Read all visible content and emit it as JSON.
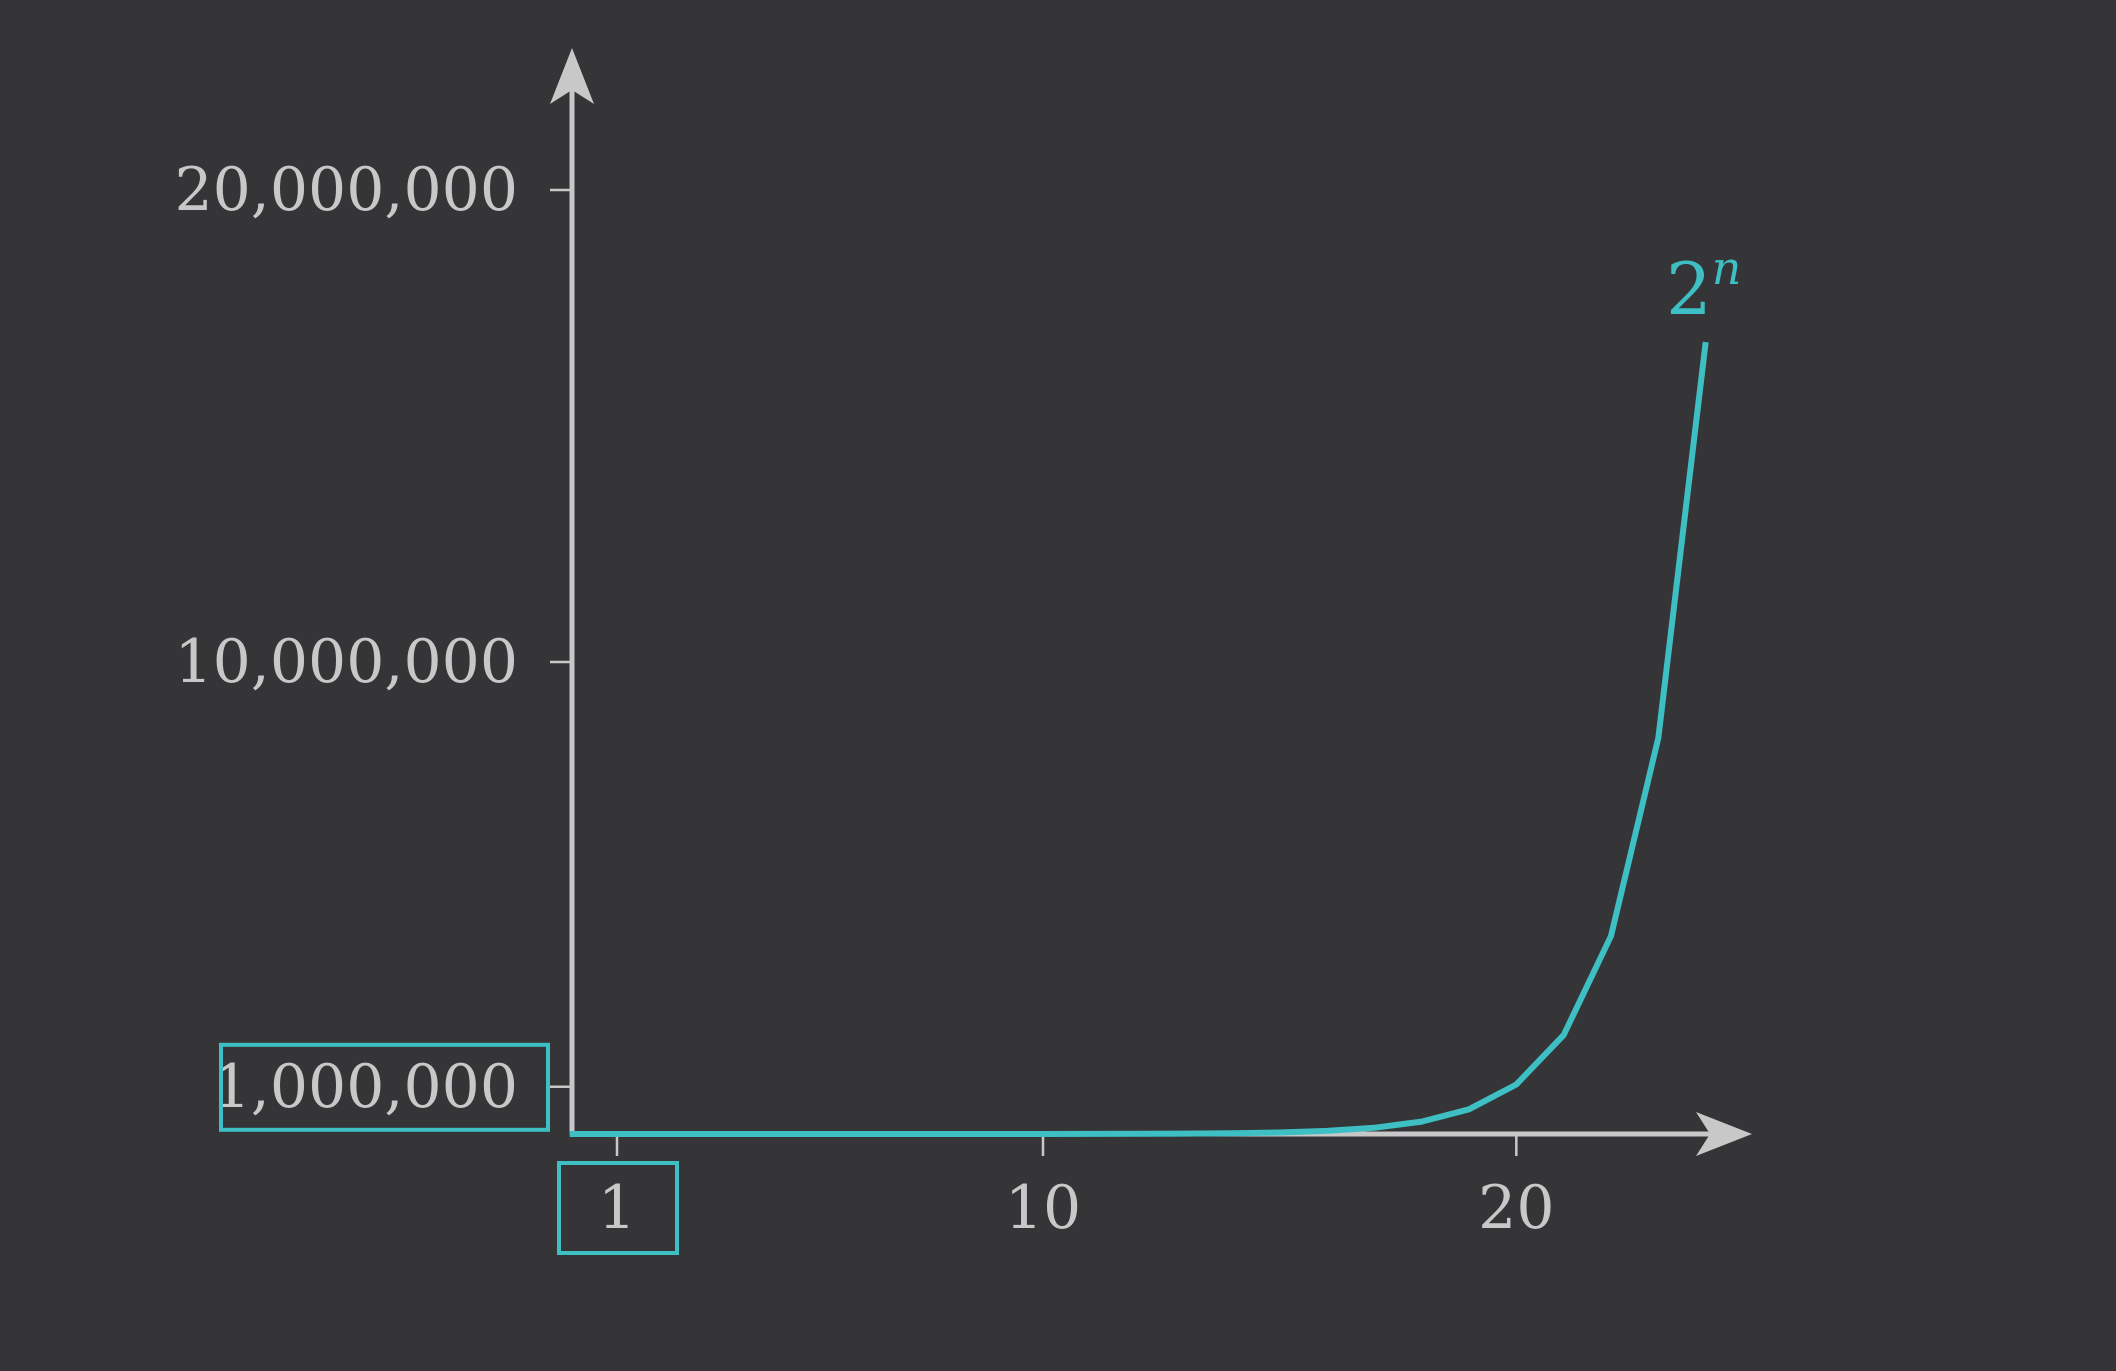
{
  "chart_data": {
    "type": "line",
    "title": "",
    "xlabel": "",
    "ylabel": "",
    "grid": false,
    "legend": "none",
    "xlim": [
      0,
      24.5
    ],
    "ylim": [
      0,
      20000000
    ],
    "x_ticks": [
      {
        "value": 1,
        "label": "1",
        "highlighted": true
      },
      {
        "value": 10,
        "label": "10",
        "highlighted": false
      },
      {
        "value": 20,
        "label": "20",
        "highlighted": false
      }
    ],
    "y_ticks": [
      {
        "value": 1000000,
        "label": "1,000,000",
        "highlighted": true
      },
      {
        "value": 10000000,
        "label": "10,000,000",
        "highlighted": false
      },
      {
        "value": 20000000,
        "label": "20,000,000",
        "highlighted": false
      }
    ],
    "series": [
      {
        "label_base": "2",
        "label_exponent": "n",
        "color": "#3ebfc4",
        "x": [
          0,
          1,
          2,
          3,
          4,
          5,
          6,
          7,
          8,
          9,
          10,
          11,
          12,
          13,
          14,
          15,
          16,
          17,
          18,
          19,
          20,
          21,
          22,
          23,
          24
        ],
        "y": [
          1,
          2,
          4,
          8,
          16,
          32,
          64,
          128,
          256,
          512,
          1024,
          2048,
          4096,
          8192,
          16384,
          32768,
          65536,
          131072,
          262144,
          524288,
          1048576,
          2097152,
          4194304,
          8388608,
          16777216
        ]
      }
    ],
    "colors": {
      "background": "#353537",
      "axis": "#c8c8c8",
      "accent": "#3ebfc4"
    }
  }
}
